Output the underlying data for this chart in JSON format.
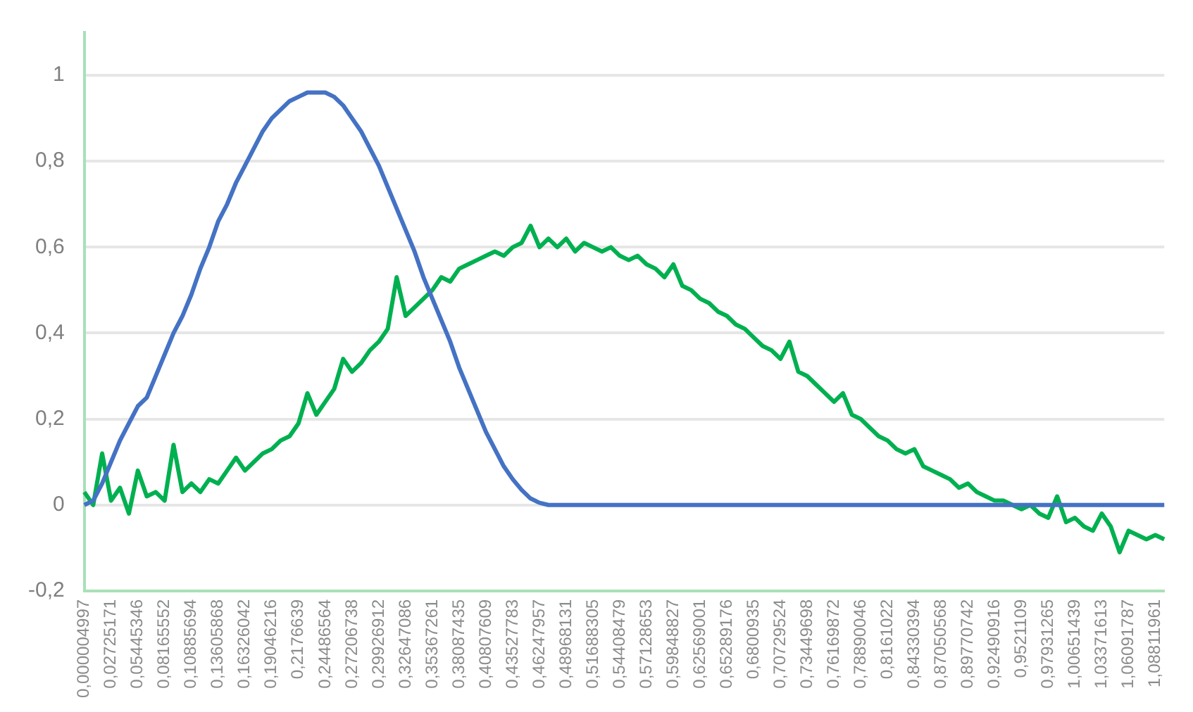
{
  "chart_data": {
    "type": "line",
    "categories": [
      "0,000004997",
      null,
      null,
      "0,02725171",
      null,
      null,
      "0,05445346",
      null,
      null,
      "0,08165552",
      null,
      null,
      "0,10885694",
      null,
      null,
      "0,13605868",
      null,
      null,
      "0,16326042",
      null,
      null,
      "0,19046216",
      null,
      null,
      "0,2176639",
      null,
      null,
      "0,24486564",
      null,
      null,
      "0,27206738",
      null,
      null,
      "0,29926912",
      null,
      null,
      "0,32647086",
      null,
      null,
      "0,35367261",
      null,
      null,
      "0,38087435",
      null,
      null,
      "0,40807609",
      null,
      null,
      "0,43527783",
      null,
      null,
      "0,46247957",
      null,
      null,
      "0,48968131",
      null,
      null,
      "0,51688305",
      null,
      null,
      "0,54408479",
      null,
      null,
      "0,57128653",
      null,
      null,
      "0,59848827",
      null,
      null,
      "0,62569001",
      null,
      null,
      "0,65289176",
      null,
      null,
      "0,6800935",
      null,
      null,
      "0,70729524",
      null,
      null,
      "0,73449698",
      null,
      null,
      "0,76169872",
      null,
      null,
      "0,78890046",
      null,
      null,
      "0,8161022",
      null,
      null,
      "0,84330394",
      null,
      null,
      "0,87050568",
      null,
      null,
      "0,89770742",
      null,
      null,
      "0,92490916",
      null,
      null,
      "0,9521109",
      null,
      null,
      "0,97931265",
      null,
      null,
      "1,00651439",
      null,
      null,
      "1,03371613",
      null,
      null,
      "1,06091787",
      null,
      null,
      "1,08811961",
      null
    ],
    "series": [
      {
        "color": "#4472c4",
        "values": [
          0,
          0.01,
          0.05,
          0.1,
          0.15,
          0.19,
          0.23,
          0.25,
          0.3,
          0.35,
          0.4,
          0.44,
          0.49,
          0.55,
          0.6,
          0.66,
          0.7,
          0.75,
          0.79,
          0.83,
          0.87,
          0.9,
          0.92,
          0.94,
          0.95,
          0.96,
          0.96,
          0.96,
          0.95,
          0.93,
          0.9,
          0.87,
          0.83,
          0.79,
          0.74,
          0.69,
          0.64,
          0.59,
          0.53,
          0.48,
          0.43,
          0.38,
          0.32,
          0.27,
          0.22,
          0.17,
          0.13,
          0.09,
          0.06,
          0.035,
          0.015,
          0.005,
          0,
          0,
          0,
          0,
          0,
          0,
          0,
          0,
          0,
          0,
          0,
          0,
          0,
          0,
          0,
          0,
          0,
          0,
          0,
          0,
          0,
          0,
          0,
          0,
          0,
          0,
          0,
          0,
          0,
          0,
          0,
          0,
          0,
          0,
          0,
          0,
          0,
          0,
          0,
          0,
          0,
          0,
          0,
          0,
          0,
          0,
          0,
          0,
          0,
          0,
          0,
          0,
          0,
          0,
          0,
          0,
          0,
          0,
          0,
          0,
          0,
          0,
          0,
          0,
          0,
          0,
          0,
          0,
          0,
          0
        ]
      },
      {
        "color": "#00b050",
        "values": [
          0.03,
          0,
          0.12,
          0.01,
          0.04,
          -0.02,
          0.08,
          0.02,
          0.03,
          0.01,
          0.14,
          0.03,
          0.05,
          0.03,
          0.06,
          0.05,
          0.08,
          0.11,
          0.08,
          0.1,
          0.12,
          0.13,
          0.15,
          0.16,
          0.19,
          0.26,
          0.21,
          0.24,
          0.27,
          0.34,
          0.31,
          0.33,
          0.36,
          0.38,
          0.41,
          0.53,
          0.44,
          0.46,
          0.48,
          0.5,
          0.53,
          0.52,
          0.55,
          0.56,
          0.57,
          0.58,
          0.59,
          0.58,
          0.6,
          0.61,
          0.65,
          0.6,
          0.62,
          0.6,
          0.62,
          0.59,
          0.61,
          0.6,
          0.59,
          0.6,
          0.58,
          0.57,
          0.58,
          0.56,
          0.55,
          0.53,
          0.56,
          0.51,
          0.5,
          0.48,
          0.47,
          0.45,
          0.44,
          0.42,
          0.41,
          0.39,
          0.37,
          0.36,
          0.34,
          0.38,
          0.31,
          0.3,
          0.28,
          0.26,
          0.24,
          0.26,
          0.21,
          0.2,
          0.18,
          0.16,
          0.15,
          0.13,
          0.12,
          0.13,
          0.09,
          0.08,
          0.07,
          0.06,
          0.04,
          0.05,
          0.03,
          0.02,
          0.01,
          0.01,
          0,
          -0.01,
          0,
          -0.02,
          -0.03,
          0.02,
          -0.04,
          -0.03,
          -0.05,
          -0.06,
          -0.02,
          -0.05,
          -0.11,
          -0.06,
          -0.07,
          -0.08,
          -0.07,
          -0.08
        ]
      }
    ],
    "ylim": [
      -0.2,
      1.1
    ],
    "yticks": [
      {
        "value": -0.2,
        "label": "-0,2"
      },
      0,
      {
        "value": 0.2,
        "label": "0,2"
      },
      {
        "value": 0.4,
        "label": "0,4"
      },
      {
        "value": 0.6,
        "label": "0,6"
      },
      {
        "value": 0.8,
        "label": "0,8"
      },
      1
    ],
    "grid": "y",
    "legend": false,
    "marker": "none",
    "line_style": "solid"
  }
}
